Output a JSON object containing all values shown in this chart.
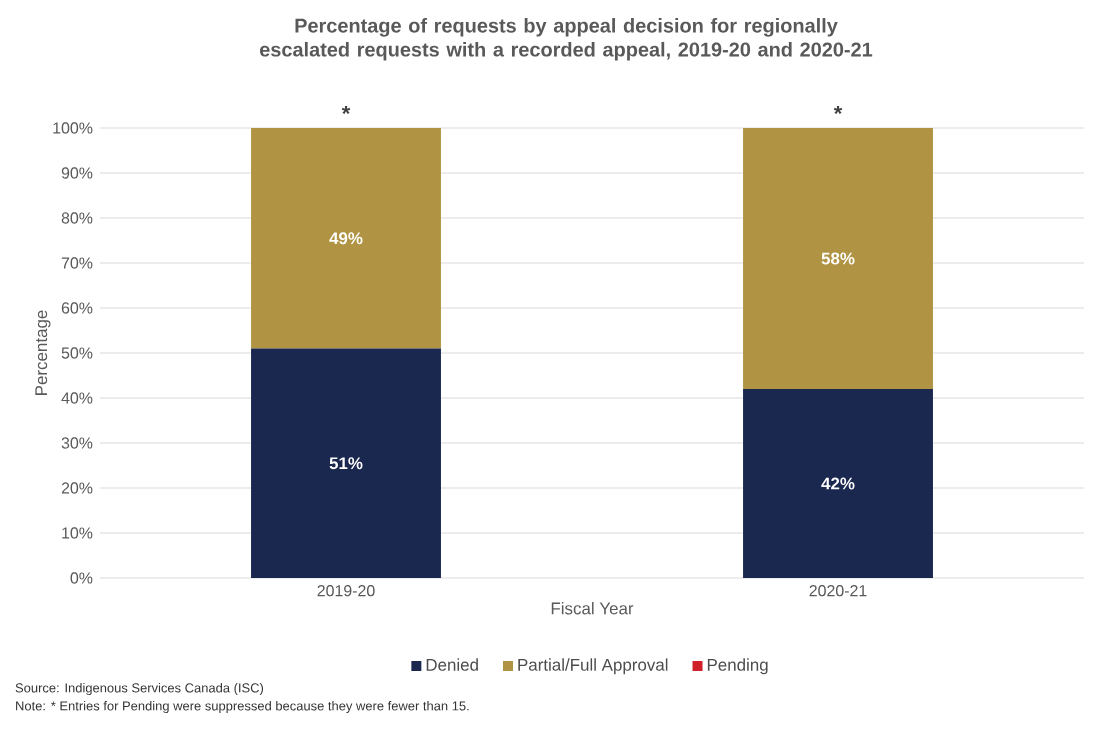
{
  "chart_data": {
    "type": "bar",
    "stacked": true,
    "title": "Percentage of requests by appeal decision for regionally escalated requests with a recorded appeal, 2019-20 and 2020-21",
    "xlabel": "Fiscal Year",
    "ylabel": "Percentage",
    "categories": [
      "2019-20",
      "2020-21"
    ],
    "series": [
      {
        "name": "Denied",
        "color": "#1a2850",
        "values": [
          51,
          42
        ],
        "value_labels": [
          "51%",
          "42%"
        ]
      },
      {
        "name": "Partial/Full Approval",
        "color": "#b09443",
        "values": [
          49,
          58
        ],
        "value_labels": [
          "49%",
          "58%"
        ]
      },
      {
        "name": "Pending",
        "color": "#d0202a",
        "values": [
          null,
          null
        ]
      }
    ],
    "ylim": [
      0,
      100
    ],
    "yticks": [
      {
        "value": 0,
        "label": "0%"
      },
      {
        "value": 10,
        "label": "10%"
      },
      {
        "value": 20,
        "label": "20%"
      },
      {
        "value": 30,
        "label": "30%"
      },
      {
        "value": 40,
        "label": "40%"
      },
      {
        "value": 50,
        "label": "50%"
      },
      {
        "value": 60,
        "label": "60%"
      },
      {
        "value": 70,
        "label": "70%"
      },
      {
        "value": 80,
        "label": "80%"
      },
      {
        "value": 90,
        "label": "90%"
      },
      {
        "value": 100,
        "label": "100%"
      }
    ],
    "grid": "y",
    "legend": "bottom",
    "annotations": [
      {
        "text": "*",
        "x": "2019-20",
        "y": 100
      },
      {
        "text": "*",
        "x": "2020-21",
        "y": 100
      },
      "Source: Indigenous Services Canada (ISC)",
      "Note: * Entries for Pending were suppressed because they were fewer than 15."
    ]
  }
}
